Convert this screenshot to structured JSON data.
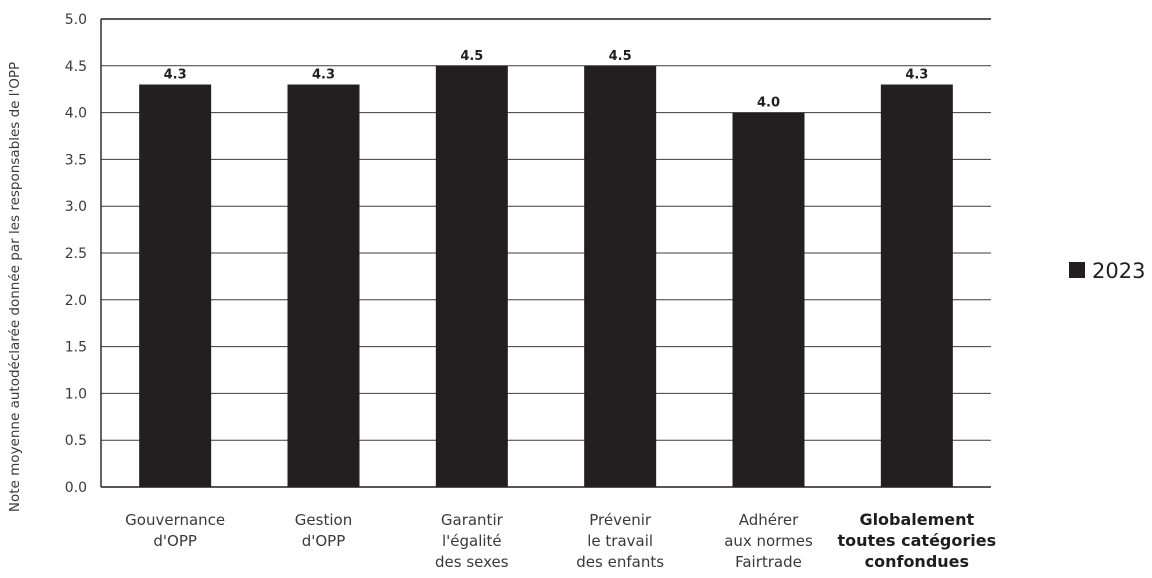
{
  "chart_data": {
    "type": "bar",
    "ylabel": "Note moyenne autodéclarée donnée par les responsables de l'OPP",
    "ylim": [
      0,
      5
    ],
    "yticks": [
      "0.0",
      "0.5",
      "1.0",
      "1.5",
      "2.0",
      "2.5",
      "3.0",
      "3.5",
      "4.0",
      "4.5",
      "5.0"
    ],
    "categories": [
      [
        "Gouvernance",
        "d'OPP"
      ],
      [
        "Gestion",
        "d'OPP"
      ],
      [
        "Garantir",
        "l'égalité",
        "des sexes"
      ],
      [
        "Prévenir",
        "le travail",
        "des enfants"
      ],
      [
        "Adhérer",
        "aux normes",
        "Fairtrade"
      ],
      [
        "Globalement",
        "toutes catégories",
        "confondues"
      ]
    ],
    "emphasized_category": 5,
    "series": [
      {
        "name": "2023",
        "values": [
          4.3,
          4.3,
          4.5,
          4.5,
          4.0,
          4.3
        ],
        "labels": [
          "4.3",
          "4.3",
          "4.5",
          "4.5",
          "4.0",
          "4.3"
        ]
      }
    ],
    "grid": true,
    "legend_position": "right",
    "colors": {
      "bar": "#231f20",
      "grid": "#3c3c3c",
      "axis": "#231f20"
    }
  }
}
